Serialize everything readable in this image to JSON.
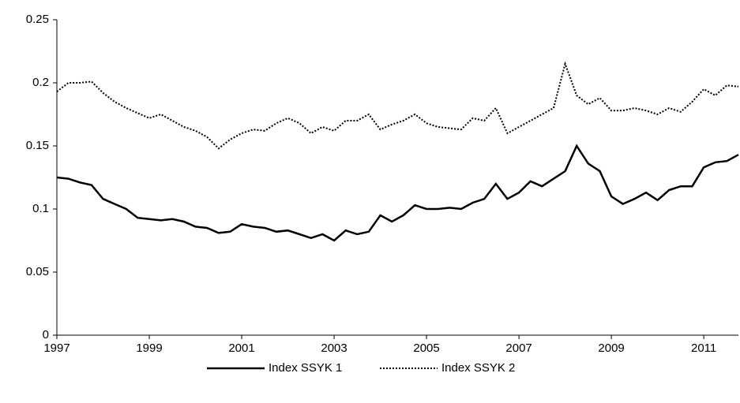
{
  "chart_data": {
    "type": "line",
    "x": [
      1997,
      1997.25,
      1997.5,
      1997.75,
      1998,
      1998.25,
      1998.5,
      1998.75,
      1999,
      1999.25,
      1999.5,
      1999.75,
      2000,
      2000.25,
      2000.5,
      2000.75,
      2001,
      2001.25,
      2001.5,
      2001.75,
      2002,
      2002.25,
      2002.5,
      2002.75,
      2003,
      2003.25,
      2003.5,
      2003.75,
      2004,
      2004.25,
      2004.5,
      2004.75,
      2005,
      2005.25,
      2005.5,
      2005.75,
      2006,
      2006.25,
      2006.5,
      2006.75,
      2007,
      2007.25,
      2007.5,
      2007.75,
      2008,
      2008.25,
      2008.5,
      2008.75,
      2009,
      2009.25,
      2009.5,
      2009.75,
      2010,
      2010.25,
      2010.5,
      2010.75,
      2011,
      2011.25,
      2011.5,
      2011.75
    ],
    "series": [
      {
        "name": "Index SSYK 1",
        "color": "#000000",
        "dash": "solid",
        "values": [
          0.125,
          0.124,
          0.121,
          0.119,
          0.108,
          0.104,
          0.1,
          0.093,
          0.092,
          0.091,
          0.092,
          0.09,
          0.086,
          0.085,
          0.081,
          0.082,
          0.088,
          0.086,
          0.085,
          0.082,
          0.083,
          0.08,
          0.077,
          0.08,
          0.075,
          0.083,
          0.08,
          0.082,
          0.095,
          0.09,
          0.095,
          0.103,
          0.1,
          0.1,
          0.101,
          0.1,
          0.105,
          0.108,
          0.12,
          0.108,
          0.113,
          0.122,
          0.118,
          0.124,
          0.13,
          0.15,
          0.136,
          0.13,
          0.11,
          0.104,
          0.108,
          0.113,
          0.107,
          0.115,
          0.118,
          0.118,
          0.133,
          0.137,
          0.138,
          0.143
        ]
      },
      {
        "name": "Index SSYK 2",
        "color": "#000000",
        "dash": "dotted",
        "values": [
          0.193,
          0.2,
          0.2,
          0.201,
          0.192,
          0.185,
          0.18,
          0.176,
          0.172,
          0.175,
          0.17,
          0.165,
          0.162,
          0.157,
          0.148,
          0.155,
          0.16,
          0.163,
          0.162,
          0.168,
          0.172,
          0.168,
          0.16,
          0.165,
          0.162,
          0.17,
          0.17,
          0.175,
          0.163,
          0.167,
          0.17,
          0.175,
          0.168,
          0.165,
          0.164,
          0.163,
          0.172,
          0.17,
          0.18,
          0.16,
          0.165,
          0.17,
          0.175,
          0.18,
          0.215,
          0.19,
          0.183,
          0.188,
          0.178,
          0.178,
          0.18,
          0.178,
          0.175,
          0.18,
          0.177,
          0.185,
          0.195,
          0.19,
          0.198,
          0.197
        ]
      }
    ],
    "xlim": [
      1997,
      2011.75
    ],
    "xticks": [
      1997,
      1999,
      2001,
      2003,
      2005,
      2007,
      2009,
      2011
    ],
    "ylim": [
      0,
      0.25
    ],
    "yticks": [
      0,
      0.05,
      0.1,
      0.15,
      0.2,
      0.25
    ],
    "grid": false,
    "legend": "bottom"
  }
}
